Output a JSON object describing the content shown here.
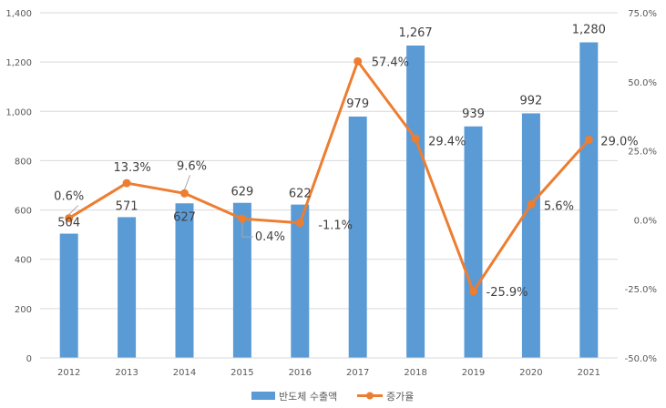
{
  "chart_data": {
    "type": "bar",
    "categories": [
      "2012",
      "2013",
      "2014",
      "2015",
      "2016",
      "2017",
      "2018",
      "2019",
      "2020",
      "2021"
    ],
    "series": [
      {
        "name": "반도체 수출액",
        "type": "bar",
        "axis": "left",
        "color": "#5b9bd5",
        "values": [
          504,
          571,
          627,
          629,
          622,
          979,
          1267,
          939,
          992,
          1280
        ],
        "labels": [
          "504",
          "571",
          "627",
          "629",
          "622",
          "979",
          "1,267",
          "939",
          "992",
          "1,280"
        ]
      },
      {
        "name": "증가율",
        "type": "line",
        "axis": "right",
        "color": "#ed7d31",
        "values": [
          0.6,
          13.3,
          9.6,
          0.4,
          -1.1,
          57.4,
          29.4,
          -25.9,
          5.6,
          29.0
        ],
        "labels": [
          "0.6%",
          "13.3%",
          "9.6%",
          "0.4%",
          "-1.1%",
          "57.4%",
          "29.4%",
          "-25.9%",
          "5.6%",
          "29.0%"
        ]
      }
    ],
    "y_left": {
      "lim": [
        0,
        1400
      ],
      "ticks": [
        0,
        200,
        400,
        600,
        800,
        1000,
        1200,
        1400
      ],
      "tick_labels": [
        "0",
        "200",
        "400",
        "600",
        "800",
        "1,000",
        "1,200",
        "1,400"
      ]
    },
    "y_right": {
      "lim": [
        -50,
        75
      ],
      "ticks": [
        -50,
        -25,
        0,
        25,
        50,
        75
      ],
      "tick_labels": [
        "-50.0%",
        "-25.0%",
        "0.0%",
        "25.0%",
        "50.0%",
        "75.0%"
      ]
    },
    "grid": true,
    "legend_position": "bottom"
  }
}
